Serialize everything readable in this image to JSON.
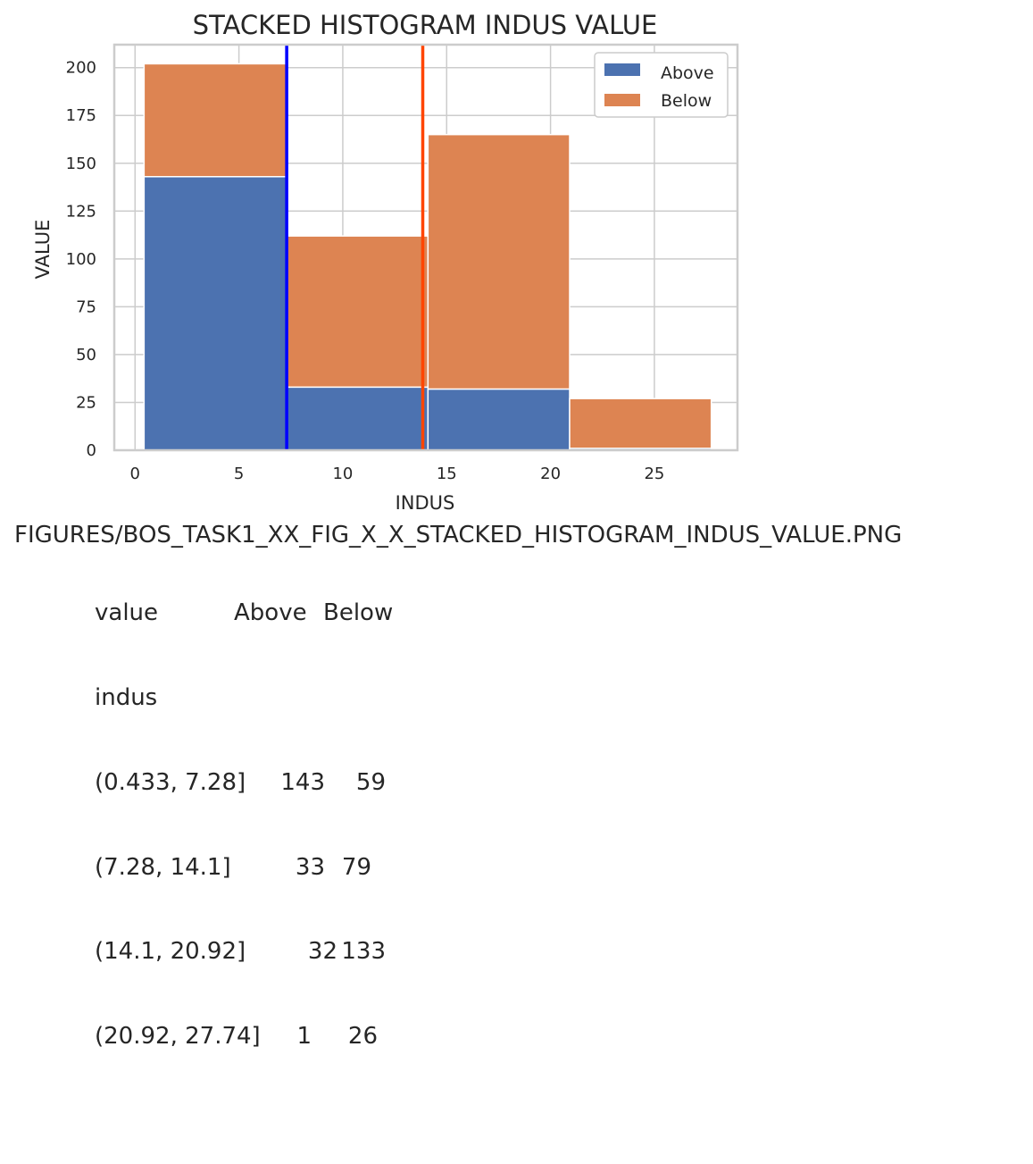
{
  "chart_data": {
    "type": "bar",
    "title": "STACKED HISTOGRAM INDUS VALUE",
    "xlabel": "INDUS",
    "ylabel": "VALUE",
    "bin_edges": [
      0.433,
      7.28,
      14.1,
      20.92,
      27.74
    ],
    "series": [
      {
        "name": "Above",
        "values": [
          143,
          33,
          32,
          1
        ],
        "color": "#4c72b0"
      },
      {
        "name": "Below",
        "values": [
          59,
          79,
          133,
          26
        ],
        "color": "#dd8452"
      }
    ],
    "xlim": [
      -1.0,
      29.0
    ],
    "ylim": [
      0,
      212
    ],
    "xticks": [
      0,
      5,
      10,
      15,
      20,
      25
    ],
    "yticks": [
      0,
      25,
      50,
      75,
      100,
      125,
      150,
      175,
      200
    ],
    "vlines": [
      {
        "x": 7.3,
        "color": "#0000ff"
      },
      {
        "x": 13.85,
        "color": "#ff4500"
      }
    ],
    "grid": true,
    "legend_position": "top-right"
  },
  "caption": "FIGURES/BOS_TASK1_XX_FIG_X_X_STACKED_HISTOGRAM_INDUS_VALUE.PNG",
  "table": {
    "header": [
      "value",
      "Above",
      "Below"
    ],
    "index_name": "indus",
    "rows": [
      [
        "(0.433, 7.28]",
        "143",
        "59"
      ],
      [
        "(7.28, 14.1]",
        "33",
        "79"
      ],
      [
        "(14.1, 20.92]",
        "32",
        "133"
      ],
      [
        "(20.92, 27.74]",
        "1",
        "26"
      ]
    ]
  }
}
